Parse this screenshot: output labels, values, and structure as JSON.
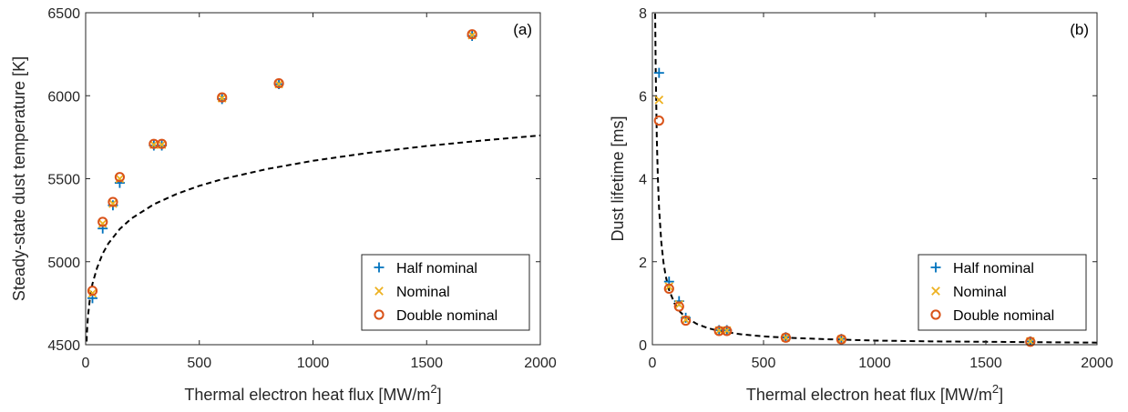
{
  "chart_data": [
    {
      "type": "scatter",
      "panel_label": "(a)",
      "xlabel": "Thermal electron heat flux [MW/m",
      "xlabel_sup": "2",
      "xlabel_end": "]",
      "ylabel": "Steady-state dust temperature [K]",
      "xlim": [
        0,
        2000
      ],
      "ylim": [
        4500,
        6500
      ],
      "xticks": [
        "0",
        "500",
        "1000",
        "1500",
        "2000"
      ],
      "yticks": [
        "4500",
        "5000",
        "5500",
        "6000",
        "6500"
      ],
      "legend_position": "bottom-right",
      "series": [
        {
          "name": "Half nominal",
          "marker": "plus",
          "color": "#0072BD",
          "x": [
            30,
            75,
            120,
            150,
            300,
            335,
            600,
            850,
            1700
          ],
          "y": [
            4780,
            5200,
            5340,
            5475,
            5700,
            5700,
            5980,
            6070,
            6360
          ]
        },
        {
          "name": "Nominal",
          "marker": "x",
          "color": "#EDB120",
          "x": [
            30,
            75,
            120,
            150,
            300,
            335,
            600,
            850,
            1700
          ],
          "y": [
            4810,
            5230,
            5350,
            5500,
            5705,
            5705,
            5985,
            6070,
            6365
          ]
        },
        {
          "name": "Double nominal",
          "marker": "circle",
          "color": "#D95319",
          "x": [
            30,
            75,
            120,
            150,
            300,
            335,
            600,
            850,
            1700
          ],
          "y": [
            4825,
            5240,
            5360,
            5510,
            5710,
            5710,
            5990,
            6075,
            6370
          ]
        }
      ],
      "fit": {
        "style": "dashed",
        "color": "#000000",
        "x": [
          1,
          5,
          10,
          20,
          30,
          50,
          75,
          100,
          150,
          200,
          300,
          400,
          500,
          600,
          800,
          1000,
          1250,
          1500,
          1750,
          2000
        ],
        "y": [
          4300,
          4555,
          4670,
          4793,
          4867,
          4962,
          5049,
          5110,
          5197,
          5259,
          5346,
          5408,
          5457,
          5497,
          5559,
          5608,
          5657,
          5697,
          5731,
          5761
        ]
      }
    },
    {
      "type": "scatter",
      "panel_label": "(b)",
      "xlabel": "Thermal electron heat flux [MW/m",
      "xlabel_sup": "2",
      "xlabel_end": "]",
      "ylabel": "Dust lifetime [ms]",
      "xlim": [
        0,
        2000
      ],
      "ylim": [
        0,
        8
      ],
      "xticks": [
        "0",
        "500",
        "1000",
        "1500",
        "2000"
      ],
      "yticks": [
        "0",
        "2",
        "4",
        "6",
        "8"
      ],
      "legend_position": "bottom-right",
      "series": [
        {
          "name": "Half nominal",
          "marker": "plus",
          "color": "#0072BD",
          "x": [
            30,
            75,
            120,
            150,
            300,
            335,
            600,
            850,
            1700
          ],
          "y": [
            6.55,
            1.52,
            1.05,
            0.65,
            0.35,
            0.35,
            0.18,
            0.14,
            0.08
          ]
        },
        {
          "name": "Nominal",
          "marker": "x",
          "color": "#EDB120",
          "x": [
            30,
            75,
            120,
            150,
            300,
            335,
            600,
            850,
            1700
          ],
          "y": [
            5.9,
            1.4,
            0.97,
            0.6,
            0.34,
            0.34,
            0.17,
            0.13,
            0.08
          ]
        },
        {
          "name": "Double nominal",
          "marker": "circle",
          "color": "#D95319",
          "x": [
            30,
            75,
            120,
            150,
            300,
            335,
            600,
            850,
            1700
          ],
          "y": [
            5.4,
            1.35,
            0.92,
            0.58,
            0.33,
            0.33,
            0.17,
            0.13,
            0.07
          ]
        }
      ],
      "fit": {
        "style": "dashed",
        "color": "#000000",
        "x": [
          12,
          15,
          20,
          25,
          30,
          40,
          50,
          60,
          75,
          100,
          125,
          150,
          200,
          250,
          300,
          400,
          500,
          600,
          800,
          1000,
          1250,
          1500,
          1750,
          2000
        ],
        "y": [
          8.2,
          6.6,
          4.95,
          3.96,
          3.3,
          2.48,
          1.98,
          1.65,
          1.32,
          0.99,
          0.79,
          0.66,
          0.5,
          0.4,
          0.33,
          0.25,
          0.2,
          0.17,
          0.13,
          0.1,
          0.08,
          0.07,
          0.06,
          0.05
        ]
      }
    }
  ]
}
